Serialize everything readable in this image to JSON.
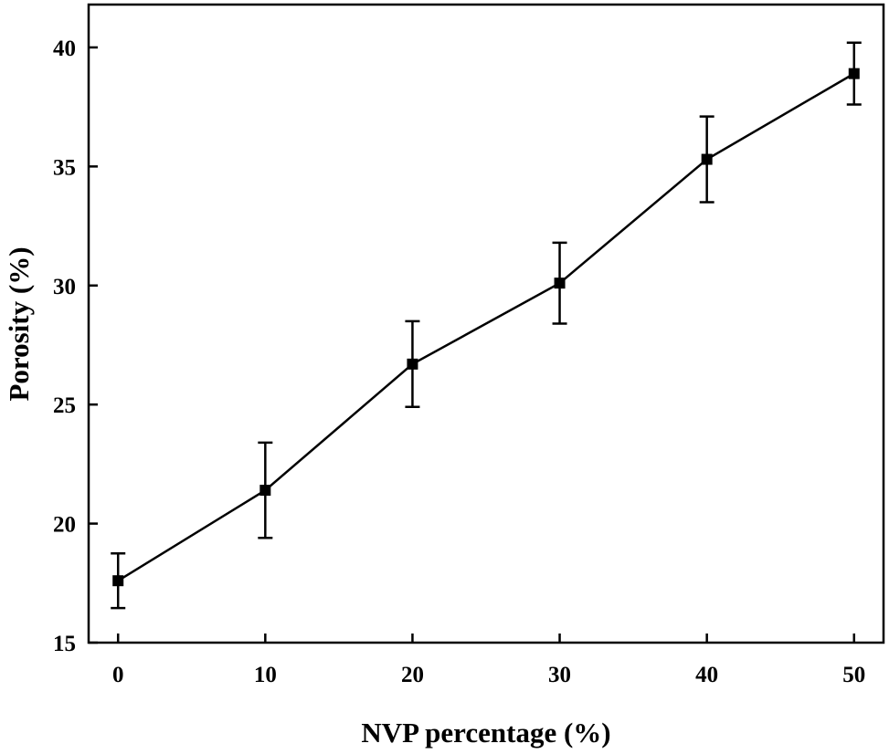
{
  "chart_data": {
    "type": "line",
    "title": "",
    "xlabel": "NVP percentage (%)",
    "ylabel": "Porosity (%)",
    "xlim": [
      -2,
      52
    ],
    "ylim": [
      15,
      41.8
    ],
    "xticks": [
      0,
      10,
      20,
      30,
      40,
      50
    ],
    "yticks": [
      15,
      20,
      25,
      30,
      35,
      40
    ],
    "series": [
      {
        "name": "Porosity",
        "marker": "square",
        "color": "#000000",
        "x": [
          0,
          10,
          20,
          30,
          40,
          50
        ],
        "y": [
          17.6,
          21.4,
          26.7,
          30.1,
          35.3,
          38.9
        ],
        "error": [
          1.15,
          2.0,
          1.8,
          1.7,
          1.8,
          1.3
        ]
      }
    ]
  }
}
